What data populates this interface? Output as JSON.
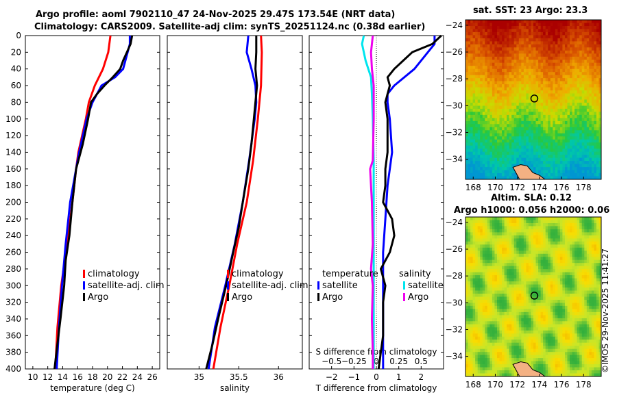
{
  "titles": {
    "line1": "Argo profile: aoml 7902110_47 24-Nov-2025 29.47S 173.54E (NRT data)",
    "line2": "Climatology: CARS2009. Satellite-adj clim: synTS_20251124.nc (0.38d earlier)",
    "sst_title": "sat. SST: 23 Argo: 23.3",
    "sla_title1": "Altim. SLA: 0.12",
    "sla_title2": "Argo h1000: 0.056 h2000: 0.06"
  },
  "copyright": "©IMOS 29-Nov-2025 11:41:27",
  "colors": {
    "climatology": "#ff0000",
    "satellite": "#0000ff",
    "argo": "#000000",
    "s_satellite": "#00e5ee",
    "s_argo": "#ee00ee"
  },
  "chart_data": [
    {
      "type": "line",
      "name": "temperature-profile",
      "xlabel": "temperature (deg C)",
      "ylabel": "",
      "xlim": [
        9,
        27
      ],
      "ylim": [
        400,
        0
      ],
      "xticks": [
        10,
        12,
        14,
        16,
        18,
        20,
        22,
        24,
        26
      ],
      "yticks": [
        0,
        20,
        40,
        60,
        80,
        100,
        120,
        140,
        160,
        180,
        200,
        220,
        240,
        260,
        280,
        300,
        320,
        340,
        360,
        380,
        400
      ],
      "legend": [
        "climatology",
        "satellite-adj. clim",
        "Argo"
      ],
      "series": [
        {
          "name": "climatology",
          "color": "#ff0000",
          "depth": [
            0,
            20,
            40,
            60,
            80,
            100,
            140,
            160,
            200,
            250,
            300,
            350,
            400
          ],
          "values": [
            20.4,
            20.1,
            19.4,
            18.3,
            17.5,
            17.1,
            16.1,
            15.8,
            15.3,
            14.6,
            13.8,
            13.3,
            13.0
          ]
        },
        {
          "name": "satellite-adj. clim",
          "color": "#0000ff",
          "depth": [
            0,
            10,
            20,
            40,
            50,
            60,
            80,
            100,
            140,
            160,
            200,
            250,
            300,
            350,
            400
          ],
          "values": [
            23.0,
            23.0,
            22.7,
            22.1,
            21.0,
            19.2,
            18.0,
            17.2,
            16.2,
            15.8,
            15.0,
            14.4,
            13.9,
            13.5,
            13.2
          ]
        },
        {
          "name": "Argo",
          "color": "#000000",
          "depth": [
            0,
            10,
            20,
            30,
            40,
            50,
            60,
            70,
            80,
            100,
            130,
            160,
            200,
            240,
            270,
            300,
            340,
            370,
            400
          ],
          "values": [
            23.3,
            23.1,
            22.6,
            22.1,
            21.7,
            20.7,
            19.6,
            18.6,
            17.8,
            17.4,
            16.7,
            15.8,
            15.3,
            14.9,
            14.4,
            14.2,
            13.7,
            13.3,
            12.9
          ]
        }
      ]
    },
    {
      "type": "line",
      "name": "salinity-profile",
      "xlabel": "salinity",
      "ylabel": "",
      "xlim": [
        34.6,
        36.3
      ],
      "ylim": [
        400,
        0
      ],
      "xticks": [
        35,
        35.5,
        36
      ],
      "legend": [
        "climatology",
        "satellite-adj. clim",
        "Argo"
      ],
      "series": [
        {
          "name": "climatology",
          "color": "#ff0000",
          "depth": [
            0,
            20,
            60,
            100,
            150,
            200,
            250,
            300,
            350,
            400
          ],
          "values": [
            35.78,
            35.79,
            35.78,
            35.74,
            35.68,
            35.6,
            35.48,
            35.38,
            35.27,
            35.18
          ]
        },
        {
          "name": "satellite-adj. clim",
          "color": "#0000ff",
          "depth": [
            0,
            20,
            40,
            60,
            80,
            100,
            150,
            200,
            250,
            300,
            350,
            400
          ],
          "values": [
            35.62,
            35.6,
            35.66,
            35.71,
            35.72,
            35.7,
            35.63,
            35.55,
            35.45,
            35.33,
            35.2,
            35.12
          ]
        },
        {
          "name": "Argo",
          "color": "#000000",
          "depth": [
            0,
            20,
            40,
            60,
            80,
            100,
            130,
            160,
            200,
            230,
            260,
            300,
            340,
            370,
            400
          ],
          "values": [
            35.72,
            35.72,
            35.71,
            35.73,
            35.71,
            35.69,
            35.66,
            35.62,
            35.55,
            35.5,
            35.43,
            35.34,
            35.24,
            35.17,
            35.09
          ]
        }
      ]
    },
    {
      "type": "line",
      "name": "difference-profile",
      "xlabel": "T difference from climatology",
      "x2label": "S difference from climatology",
      "xlim": [
        -3,
        3
      ],
      "ylim": [
        400,
        0
      ],
      "xticks": [
        -2,
        -1,
        0,
        1,
        2
      ],
      "x2ticks": [
        -0.5,
        -0.25,
        0,
        0.25,
        0.5
      ],
      "legend_t_title": "temperature",
      "legend_s_title": "salinity",
      "legend_t": [
        "satellite",
        "Argo"
      ],
      "legend_s": [
        "satellite",
        "Argo"
      ],
      "series": [
        {
          "name": "T satellite",
          "color": "#0000ff",
          "depth": [
            0,
            10,
            20,
            40,
            60,
            70,
            80,
            100,
            140,
            180,
            220,
            260,
            300,
            340,
            380,
            400
          ],
          "values": [
            2.6,
            2.6,
            2.3,
            1.7,
            0.8,
            0.5,
            0.5,
            0.6,
            0.7,
            0.5,
            0.4,
            0.3,
            0.3,
            0.3,
            0.3,
            0.3
          ]
        },
        {
          "name": "T Argo",
          "color": "#000000",
          "depth": [
            0,
            10,
            20,
            30,
            40,
            50,
            60,
            80,
            100,
            120,
            140,
            160,
            180,
            200,
            220,
            240,
            260,
            280,
            300,
            320,
            340,
            360,
            380,
            400
          ],
          "values": [
            2.9,
            2.5,
            1.6,
            1.2,
            0.8,
            0.5,
            0.6,
            0.4,
            0.5,
            0.5,
            0.5,
            0.4,
            0.4,
            0.3,
            0.7,
            0.8,
            0.6,
            0.2,
            0.4,
            0.3,
            0.3,
            0.3,
            0.2,
            0.1
          ]
        },
        {
          "name": "S satellite",
          "color": "#00e5ee",
          "depth": [
            0,
            10,
            30,
            50,
            70,
            100,
            150,
            200,
            250,
            300,
            350,
            400
          ],
          "values": [
            -0.14,
            -0.16,
            -0.12,
            -0.06,
            -0.05,
            -0.04,
            -0.03,
            -0.03,
            -0.03,
            -0.03,
            -0.03,
            -0.03
          ]
        },
        {
          "name": "S Argo",
          "color": "#ee00ee",
          "depth": [
            0,
            20,
            40,
            60,
            100,
            150,
            160,
            200,
            250,
            280,
            300,
            340,
            380,
            400
          ],
          "values": [
            -0.04,
            -0.06,
            -0.05,
            -0.03,
            -0.03,
            -0.04,
            -0.07,
            -0.05,
            -0.04,
            -0.06,
            -0.04,
            -0.05,
            -0.04,
            -0.04
          ]
        }
      ]
    },
    {
      "type": "heatmap",
      "name": "sst-map",
      "title": "sat. SST: 23 Argo: 23.3",
      "xlim": [
        167.3,
        179.6
      ],
      "ylim": [
        -35.5,
        -23.6
      ],
      "xticks": [
        168,
        170,
        172,
        174,
        176,
        178
      ],
      "yticks": [
        -24,
        -26,
        -28,
        -30,
        -32,
        -34
      ],
      "marker": {
        "lon": 173.54,
        "lat": -29.47
      }
    },
    {
      "type": "heatmap",
      "name": "sla-map",
      "title": "Altim. SLA: 0.12",
      "xlim": [
        167.3,
        179.6
      ],
      "ylim": [
        -35.5,
        -23.6
      ],
      "xticks": [
        168,
        170,
        172,
        174,
        176,
        178
      ],
      "yticks": [
        -24,
        -26,
        -28,
        -30,
        -32,
        -34
      ],
      "marker": {
        "lon": 173.54,
        "lat": -29.47
      }
    }
  ]
}
